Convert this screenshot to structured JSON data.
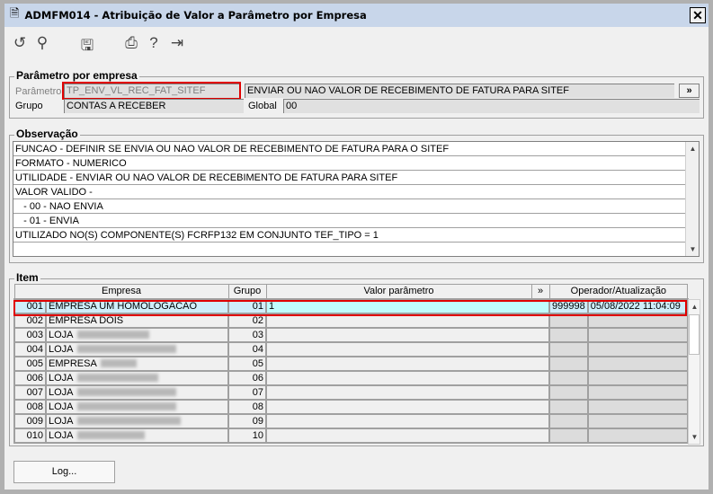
{
  "window": {
    "title": "ADMFM014 - Atribuição de Valor a Parâmetro por Empresa",
    "close": "✕"
  },
  "toolbar": [
    {
      "icon": "undo-icon",
      "glyph": "↺"
    },
    {
      "icon": "search-icon",
      "glyph": "⚲"
    },
    {
      "icon": "save-icon",
      "glyph": "🖫"
    },
    {
      "icon": "print-icon",
      "glyph": "⎙"
    },
    {
      "icon": "help-icon",
      "glyph": "?"
    },
    {
      "icon": "exit-icon",
      "glyph": "⇥"
    }
  ],
  "param": {
    "legend": "Parâmetro por empresa",
    "param_label": "Parâmetro",
    "param_value": "TP_ENV_VL_REC_FAT_SITEF",
    "param_desc": "ENVIAR OU NAO VALOR DE RECEBIMENTO DE FATURA PARA SITEF",
    "more": "»",
    "group_label": "Grupo",
    "group_value": "CONTAS A RECEBER",
    "global_label": "Global",
    "global_value": "00"
  },
  "obs": {
    "legend": "Observação",
    "lines": [
      "FUNCAO - DEFINIR SE ENVIA OU NAO VALOR DE RECEBIMENTO DE FATURA PARA O SITEF",
      "FORMATO - NUMERICO",
      "UTILIDADE - ENVIAR OU NAO VALOR DE RECEBIMENTO DE FATURA PARA SITEF",
      "VALOR VALIDO -",
      "   - 00 - NAO ENVIA",
      "   - 01 - ENVIA",
      "UTILIZADO NO(S) COMPONENTE(S) FCRFP132 EM CONJUNTO TEF_TIPO = 1"
    ]
  },
  "item": {
    "legend": "Item",
    "headers": {
      "empresa": "Empresa",
      "grupo": "Grupo",
      "valor": "Valor parâmetro",
      "more": "»",
      "operador": "Operador/Atualização"
    },
    "rows": [
      {
        "code": "001",
        "name": "EMPRESA UM HOMOLOGACAO",
        "grupo": "01",
        "valor": "1",
        "operador": "999998",
        "data": "05/08/2022 11:04:09"
      },
      {
        "code": "002",
        "name": "EMPRESA DOIS",
        "grupo": "02",
        "valor": "",
        "operador": "",
        "data": ""
      },
      {
        "code": "003",
        "name": "LOJA",
        "grupo": "03",
        "valor": "",
        "operador": "",
        "data": ""
      },
      {
        "code": "004",
        "name": "LOJA",
        "grupo": "04",
        "valor": "",
        "operador": "",
        "data": ""
      },
      {
        "code": "005",
        "name": "EMPRESA",
        "grupo": "05",
        "valor": "",
        "operador": "",
        "data": ""
      },
      {
        "code": "006",
        "name": "LOJA",
        "grupo": "06",
        "valor": "",
        "operador": "",
        "data": ""
      },
      {
        "code": "007",
        "name": "LOJA",
        "grupo": "07",
        "valor": "",
        "operador": "",
        "data": ""
      },
      {
        "code": "008",
        "name": "LOJA",
        "grupo": "08",
        "valor": "",
        "operador": "",
        "data": ""
      },
      {
        "code": "009",
        "name": "LOJA",
        "grupo": "09",
        "valor": "",
        "operador": "",
        "data": ""
      },
      {
        "code": "010",
        "name": "LOJA",
        "grupo": "10",
        "valor": "",
        "operador": "",
        "data": ""
      }
    ]
  },
  "log_button": "Log...",
  "colors": {
    "title_bg": "#c8d6ea",
    "selected_row": "#cfeefa",
    "selected_value": "#c0fcfc",
    "highlight": "#e00000"
  }
}
